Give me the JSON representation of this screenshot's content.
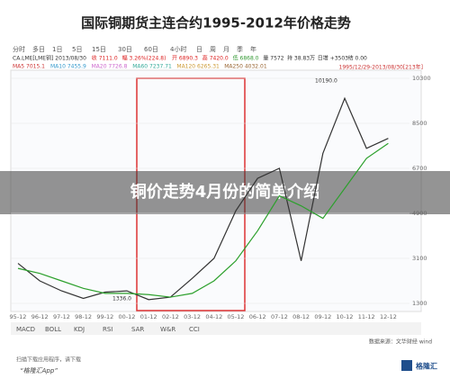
{
  "header": {
    "title": "国际铜期货主连合约1995-2012年价格走势"
  },
  "toolbar": [
    "分时",
    "多日",
    "1日",
    "5日",
    "15日",
    "30日",
    "60日",
    "4小时",
    "日",
    "周",
    "月",
    "季",
    "年"
  ],
  "info_line": [
    "CA.LME[LME铜] 2013/08/30",
    "收 7111.0",
    "幅 3.26%(224.8)",
    "开 6890.3",
    "高 7420.0",
    "低 6868.0",
    "量 7572",
    "持 38.83万",
    "日增 +3503",
    "结 0.00"
  ],
  "ma_line": [
    "MA5 7015.1",
    "MA10 7455.9",
    "MA20 7726.8",
    "MA60 7237.71",
    "MA120 6265.31",
    "MA250 4032.01"
  ],
  "range_label": "1995/12/29-2013/08/30[213年]",
  "chart_data": {
    "type": "line",
    "categories": [
      "95-12",
      "96-12",
      "97-12",
      "98-12",
      "99-12",
      "00-12",
      "01-12",
      "02-12",
      "03-12",
      "04-12",
      "05-12",
      "06-12",
      "07-12",
      "08-12",
      "09-12",
      "10-12",
      "11-12",
      "12-12"
    ],
    "series": [
      {
        "color": "#333333",
        "values": [
          2900,
          2200,
          1800,
          1500,
          1750,
          1800,
          1450,
          1550,
          2300,
          3100,
          5000,
          6300,
          6700,
          3000,
          7300,
          9500,
          7500,
          7900
        ]
      },
      {
        "color": "#2ca02c",
        "values": [
          2700,
          2500,
          2200,
          1900,
          1700,
          1700,
          1650,
          1550,
          1700,
          2200,
          3000,
          4200,
          5600,
          5200,
          4700,
          5900,
          7100,
          7700
        ]
      }
    ],
    "ylim": [
      1300,
      10300
    ],
    "yticks": [
      1300,
      3100,
      4900,
      6700,
      8500,
      10300
    ],
    "annotations": [
      {
        "text": "10190.0",
        "value": 10190
      },
      {
        "text": "1336.0",
        "value": 1336
      }
    ]
  },
  "indicators": [
    "MACD",
    "BOLL",
    "KDJ",
    "RSI",
    "SAR",
    "W&R",
    "CCI"
  ],
  "source": "数据来源：文华财经 wind",
  "banner": "铜价走势4月份的简单介绍",
  "footer": {
    "line1": "扫描下载应用程序，请下载",
    "line2": "“格隆汇App”",
    "logo": "格隆汇"
  }
}
